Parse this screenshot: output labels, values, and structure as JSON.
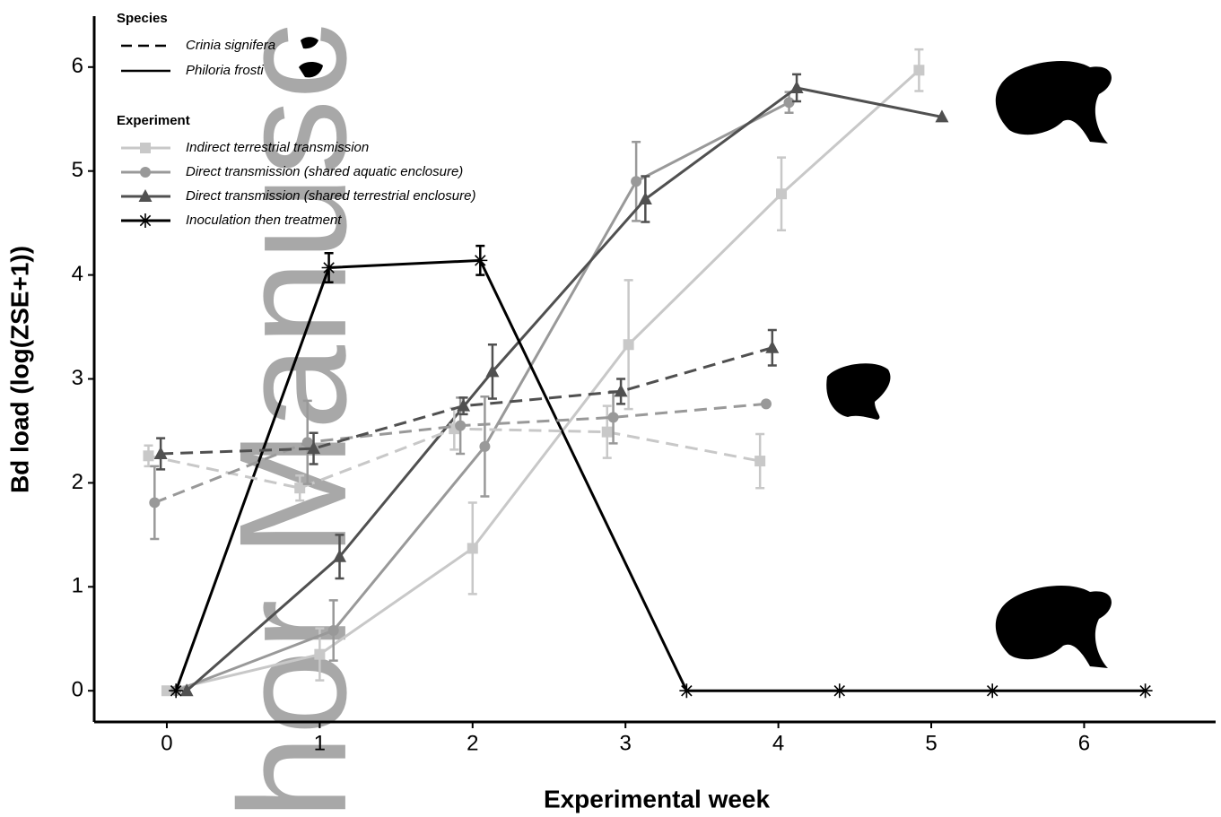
{
  "chart_data": {
    "type": "line",
    "x_label": "Experimental week",
    "y_label": "Bd load (log(ZSE+1))",
    "watermark": "hor Manusc",
    "xlim": [
      -0.475,
      6.86
    ],
    "ylim": [
      -0.3,
      6.49
    ],
    "xticks": [
      0,
      1,
      2,
      3,
      4,
      5,
      6
    ],
    "yticks": [
      0,
      1,
      2,
      3,
      4,
      5,
      6
    ],
    "legend": {
      "species": {
        "title": "Species",
        "items": [
          {
            "label": "Crinia signifera",
            "dash": true
          },
          {
            "label": "Philoria frosti",
            "dash": false
          }
        ]
      },
      "experiment": {
        "title": "Experiment",
        "items": [
          {
            "label": "Indirect terrestrial transmission",
            "color": "#c8c8c8",
            "marker": "square"
          },
          {
            "label": "Direct transmission (shared aquatic enclosure)",
            "color": "#999999",
            "marker": "circle"
          },
          {
            "label": "Direct transmission (shared terrestrial enclosure)",
            "color": "#505050",
            "marker": "triangle"
          },
          {
            "label": "Inoculation then treatment",
            "color": "#000000",
            "marker": "asterisk"
          }
        ]
      }
    },
    "series": [
      {
        "species": 1,
        "experiment": 0,
        "x": [
          0,
          1,
          2,
          3.02,
          4.02,
          4.92
        ],
        "values": [
          0,
          0.35,
          1.37,
          3.33,
          4.78,
          5.97
        ],
        "errors": [
          0,
          0.25,
          0.44,
          0.62,
          0.35,
          0.2
        ]
      },
      {
        "species": 1,
        "experiment": 1,
        "x": [
          0.06,
          1.09,
          2.08,
          3.07,
          4.07
        ],
        "values": [
          0,
          0.58,
          2.35,
          4.9,
          5.66
        ],
        "errors": [
          0,
          0.29,
          0.48,
          0.38,
          0.1
        ]
      },
      {
        "species": 1,
        "experiment": 2,
        "x": [
          0.13,
          1.13,
          2.13,
          3.13,
          4.12,
          5.07
        ],
        "values": [
          0,
          1.29,
          3.07,
          4.73,
          5.8,
          5.52
        ],
        "errors": [
          0,
          0.21,
          0.26,
          0.22,
          0.13,
          0
        ]
      },
      {
        "species": 1,
        "experiment": 3,
        "x": [
          0.06,
          1.06,
          2.05,
          3.4,
          4.4,
          5.4,
          6.4
        ],
        "values": [
          0,
          4.07,
          4.14,
          0,
          0,
          0,
          0
        ],
        "errors": [
          0,
          0.14,
          0.14,
          0,
          0,
          0,
          0
        ]
      },
      {
        "species": 0,
        "experiment": 0,
        "x": [
          -0.12,
          0.87,
          1.88,
          2.88,
          3.88
        ],
        "values": [
          2.26,
          1.95,
          2.52,
          2.49,
          2.21
        ],
        "errors": [
          0.1,
          0.12,
          0.2,
          0.25,
          0.26
        ]
      },
      {
        "species": 0,
        "experiment": 1,
        "x": [
          -0.08,
          0.92,
          1.92,
          2.92,
          3.92
        ],
        "values": [
          1.81,
          2.39,
          2.55,
          2.63,
          2.76
        ],
        "errors": [
          0.35,
          0.4,
          0.27,
          0.25,
          0
        ]
      },
      {
        "species": 0,
        "experiment": 2,
        "x": [
          -0.04,
          0.96,
          1.94,
          2.97,
          3.96
        ],
        "values": [
          2.28,
          2.33,
          2.74,
          2.88,
          3.3
        ],
        "errors": [
          0.15,
          0.15,
          0.08,
          0.12,
          0.17
        ]
      }
    ]
  }
}
